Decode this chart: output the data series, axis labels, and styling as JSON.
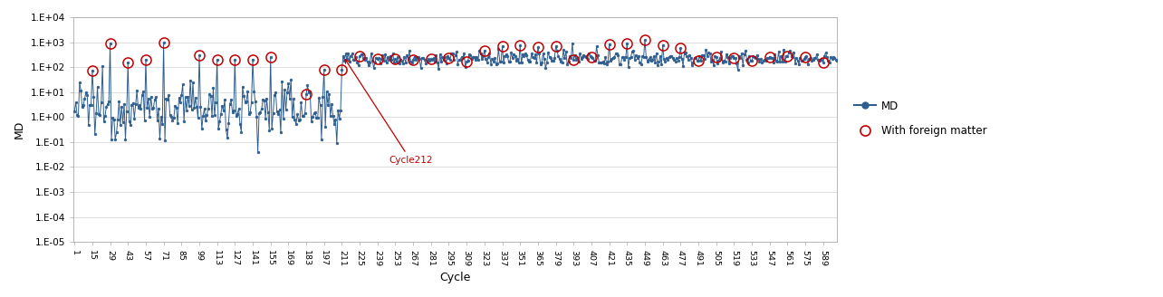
{
  "title": "",
  "xlabel": "Cycle",
  "ylabel": "MD",
  "x_ticks": [
    1,
    15,
    29,
    43,
    57,
    71,
    85,
    99,
    113,
    127,
    141,
    155,
    169,
    183,
    197,
    211,
    225,
    239,
    253,
    267,
    281,
    295,
    309,
    323,
    337,
    351,
    365,
    379,
    393,
    407,
    421,
    435,
    449,
    463,
    477,
    491,
    505,
    519,
    533,
    547,
    561,
    575,
    589
  ],
  "ylim_log": [
    -5,
    4
  ],
  "line_color": "#2E5D8E",
  "marker_color": "#2E5D8E",
  "foreign_color": "#C00000",
  "annotation_text": "Cycle212",
  "background_color": "#FFFFFF",
  "grid_color": "#D9D9D9",
  "legend_md": "MD",
  "legend_foreign": "With foreign matter",
  "foreign_matter_cycles_phase1": [
    15,
    29,
    43,
    57,
    71,
    99,
    113,
    127,
    141,
    155,
    183,
    197,
    211
  ],
  "foreign_matter_cycles_phase2": [
    225,
    239,
    253,
    267,
    281,
    295,
    309,
    323,
    337,
    351,
    365,
    379,
    393,
    407,
    421,
    435,
    449,
    463,
    477,
    491,
    505,
    519,
    533,
    547,
    561,
    575,
    589
  ],
  "seed": 12345
}
